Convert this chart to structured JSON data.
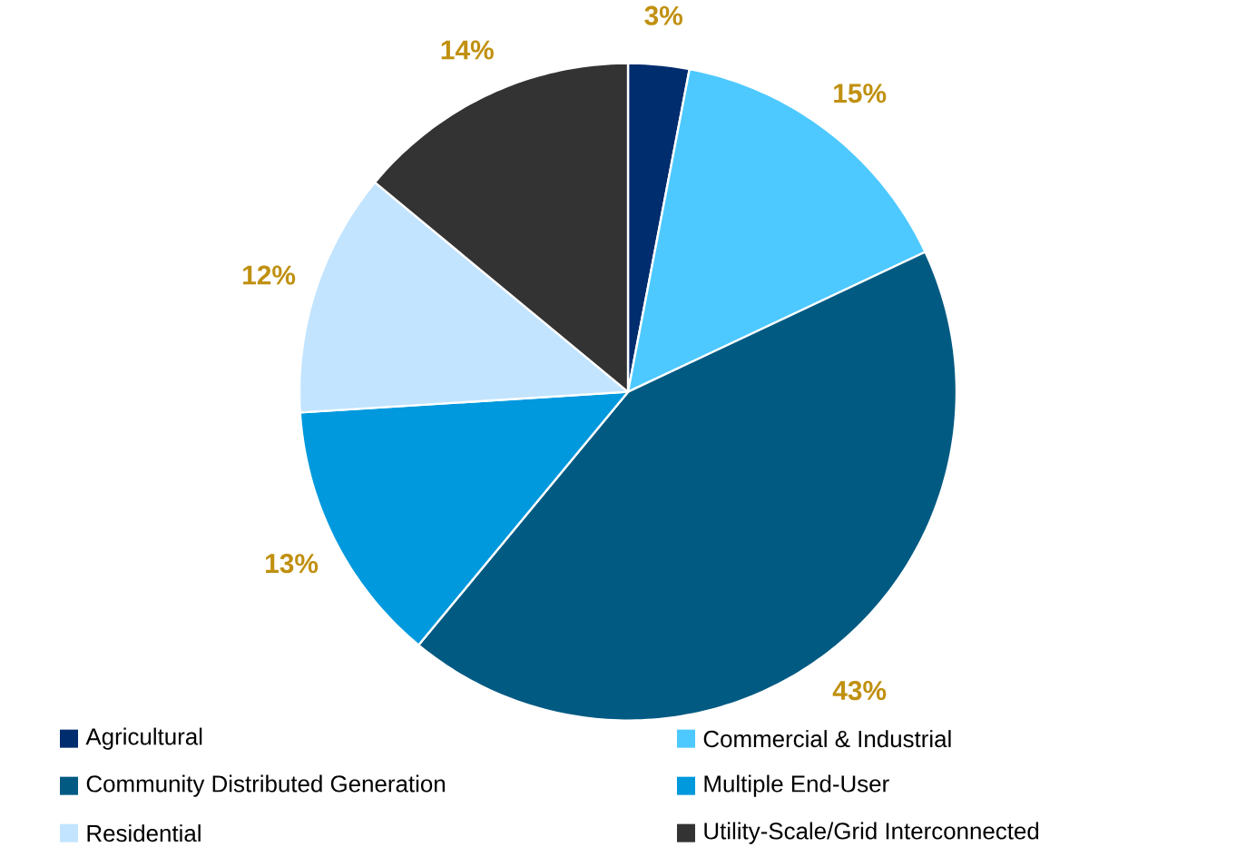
{
  "chart_data": {
    "type": "pie",
    "categories": [
      "Agricultural",
      "Commercial & Industrial",
      "Community Distributed Generation",
      "Multiple End-User",
      "Residential",
      "Utility-Scale/Grid Interconnected"
    ],
    "values": [
      3,
      15,
      43,
      13,
      12,
      14
    ],
    "colors": [
      "#002d6e",
      "#4dc9ff",
      "#005a82",
      "#0099dd",
      "#c2e4ff",
      "#333333"
    ],
    "value_labels": [
      "3%",
      "15%",
      "43%",
      "13%",
      "12%",
      "14%"
    ],
    "legend": "bottom"
  }
}
